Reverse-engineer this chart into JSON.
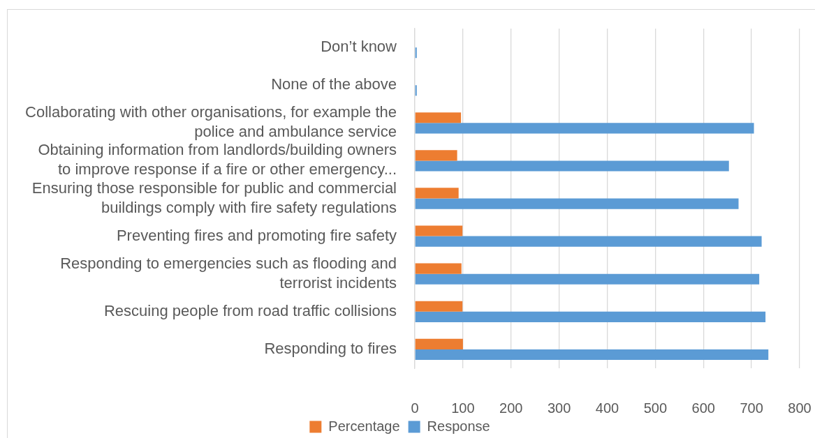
{
  "chart_data": {
    "type": "bar",
    "orientation": "horizontal",
    "categories": [
      "Don’t know",
      "None of the above",
      "Collaborating with other organisations, for example the police and ambulance service",
      "Obtaining information from landlords/building owners to improve response if a fire or other emergency...",
      "Ensuring those responsible for public and commercial buildings comply with fire safety regulations",
      "Preventing fires and promoting fire safety",
      "Responding to emergencies such as flooding and terrorist incidents",
      "Rescuing people from road traffic collisions",
      "Responding to fires"
    ],
    "series": [
      {
        "name": "Percentage",
        "color": "#ed7d31",
        "values": [
          null,
          null,
          96,
          88,
          91,
          99,
          97,
          99,
          100
        ]
      },
      {
        "name": "Response",
        "color": "#5b9bd5",
        "values": [
          4,
          4,
          705,
          653,
          673,
          721,
          716,
          729,
          735
        ]
      }
    ],
    "xlim": [
      0,
      800
    ],
    "xticks": [
      0,
      100,
      200,
      300,
      400,
      500,
      600,
      700,
      800
    ],
    "grid": "x",
    "legend": "bottom"
  }
}
